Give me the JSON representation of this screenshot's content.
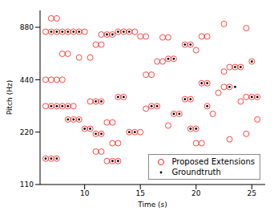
{
  "chart_data": {
    "type": "scatter",
    "x_label": "Time (s)",
    "y_label": "Pitch (Hz)",
    "xlim": [
      6,
      26.2
    ],
    "xticks": [
      10,
      15,
      20,
      25
    ],
    "ylim": [
      110,
      1100
    ],
    "yticks": [
      110,
      220,
      440,
      880
    ],
    "log": "y",
    "grid": false,
    "legend": "lower right",
    "series": [
      {
        "name": "Proposed Extensions",
        "color": "#ff0000",
        "marker": "o",
        "x": [
          6.5,
          7,
          7.5,
          8,
          8.5,
          9,
          9.5,
          10,
          6.5,
          7,
          7.5,
          8,
          6.5,
          7,
          7.5,
          8,
          8.5,
          9,
          6.5,
          7,
          7.5,
          8,
          8.5,
          9.5,
          10.5,
          7,
          7.5,
          8.5,
          9,
          9.5,
          10,
          10.5,
          11,
          11.5,
          11,
          11.5,
          10.5,
          11,
          11.5,
          11,
          11.5,
          11.5,
          12,
          12.5,
          13,
          13.5,
          14,
          14.5,
          15,
          15.5,
          13,
          13.5,
          12,
          12.5,
          12.5,
          13,
          12,
          12.5,
          13,
          14,
          14.5,
          15,
          15.5,
          16,
          16.5,
          15.5,
          16,
          16.5,
          17,
          17.5,
          18,
          17,
          17.5,
          17.5,
          18,
          18.5,
          19,
          19.5,
          19,
          19.5,
          20,
          19.5,
          20,
          20,
          20.5,
          20.5,
          21,
          20.5,
          21,
          21,
          21.5,
          22,
          22.5,
          23,
          22.5,
          23,
          23.5,
          24,
          25,
          23,
          24.5,
          24,
          24.5,
          25,
          25.5,
          25.5,
          24.5,
          22.5
        ],
        "values": [
          830,
          830,
          830,
          830,
          830,
          830,
          830,
          830,
          440,
          440,
          440,
          440,
          310,
          310,
          310,
          310,
          310,
          310,
          155,
          155,
          155,
          620,
          620,
          590,
          590,
          990,
          990,
          260,
          260,
          260,
          230,
          230,
          215,
          215,
          170,
          170,
          330,
          330,
          330,
          700,
          700,
          800,
          800,
          800,
          830,
          830,
          830,
          830,
          780,
          780,
          350,
          350,
          250,
          250,
          190,
          190,
          150,
          150,
          150,
          220,
          220,
          220,
          300,
          310,
          310,
          470,
          470,
          560,
          560,
          580,
          580,
          770,
          770,
          240,
          280,
          280,
          340,
          340,
          700,
          700,
          650,
          230,
          230,
          190,
          190,
          420,
          420,
          780,
          780,
          310,
          280,
          370,
          400,
          400,
          490,
          520,
          520,
          520,
          560,
          200,
          215,
          330,
          350,
          350,
          350,
          260,
          870,
          920
        ]
      },
      {
        "name": "Groundtruth",
        "color": "#000000",
        "marker": ".",
        "x": [
          7,
          7.5,
          8,
          8.5,
          9,
          9.5,
          7,
          7.5,
          8,
          8.5,
          6.5,
          7,
          7.5,
          8.5,
          9,
          9.5,
          10,
          10.5,
          11,
          11.5,
          11,
          11.5,
          12,
          12.5,
          13,
          13.5,
          14,
          13,
          13.5,
          12.5,
          13,
          14,
          14.5,
          16,
          16.5,
          17.5,
          18,
          18,
          18.5,
          19,
          19.5,
          19,
          19.5,
          19.5,
          20,
          20.5,
          21,
          21,
          23,
          23.5,
          23.5,
          24,
          25,
          25,
          25.5
        ],
        "values": [
          830,
          830,
          830,
          830,
          830,
          830,
          310,
          310,
          310,
          310,
          155,
          155,
          155,
          260,
          260,
          260,
          230,
          230,
          215,
          215,
          330,
          330,
          800,
          800,
          830,
          830,
          830,
          350,
          350,
          150,
          150,
          220,
          220,
          310,
          310,
          580,
          580,
          280,
          280,
          340,
          340,
          700,
          700,
          230,
          230,
          420,
          420,
          310,
          400,
          400,
          520,
          520,
          560,
          350,
          350
        ]
      }
    ]
  }
}
